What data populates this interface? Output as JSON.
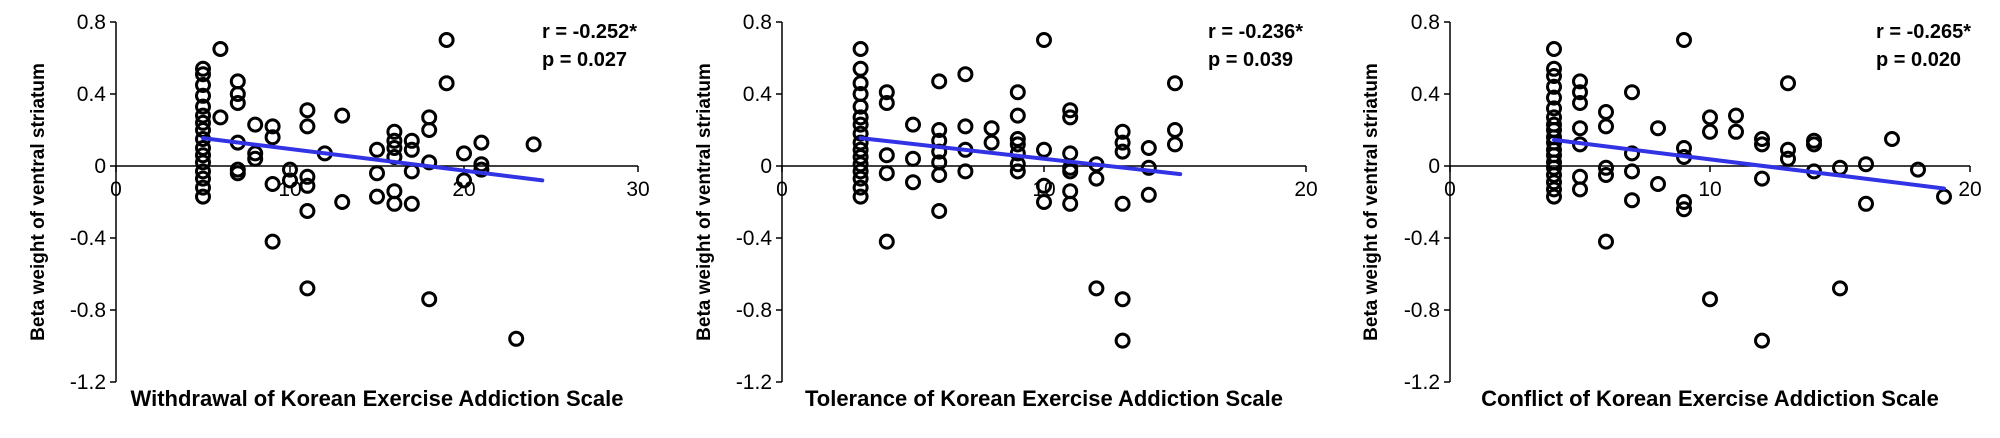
{
  "colors": {
    "fit_line": "#3333e6",
    "marker_stroke": "#000000",
    "axis": "#000000"
  },
  "chart_data": [
    {
      "type": "scatter",
      "xlabel": "Withdrawal of Korean Exercise Addiction Scale",
      "ylabel": "Beta weight of ventral striatum",
      "xlim": [
        0,
        30
      ],
      "ylim": [
        -1.2,
        0.8
      ],
      "xticks": [
        "0",
        "10",
        "20",
        "30"
      ],
      "yticks": [
        "0.8",
        "0.4",
        "0",
        "-0.4",
        "-0.8",
        "-1.2"
      ],
      "stat_r": "r = -0.252*",
      "stat_p": "p = 0.027",
      "fit_line": {
        "x": [
          5,
          24.5
        ],
        "y": [
          0.155,
          -0.08
        ]
      },
      "points": [
        [
          5,
          0.54
        ],
        [
          5,
          0.51
        ],
        [
          5,
          0.45
        ],
        [
          5,
          0.39
        ],
        [
          5,
          0.33
        ],
        [
          5,
          0.28
        ],
        [
          5,
          0.24
        ],
        [
          5,
          0.2
        ],
        [
          5,
          0.15
        ],
        [
          5,
          0.1
        ],
        [
          5,
          0.06
        ],
        [
          5,
          0.02
        ],
        [
          5,
          -0.03
        ],
        [
          5,
          -0.07
        ],
        [
          5,
          -0.12
        ],
        [
          5,
          -0.17
        ],
        [
          6,
          0.65
        ],
        [
          6,
          0.27
        ],
        [
          7,
          0.47
        ],
        [
          7,
          0.4
        ],
        [
          7,
          0.35
        ],
        [
          7,
          0.13
        ],
        [
          7,
          -0.02
        ],
        [
          7,
          -0.04
        ],
        [
          8,
          0.23
        ],
        [
          8,
          0.07
        ],
        [
          8,
          0.04
        ],
        [
          9,
          0.22
        ],
        [
          9,
          0.16
        ],
        [
          9,
          -0.1
        ],
        [
          9,
          -0.42
        ],
        [
          10,
          -0.02
        ],
        [
          10,
          -0.08
        ],
        [
          11,
          0.31
        ],
        [
          11,
          0.22
        ],
        [
          11,
          -0.06
        ],
        [
          11,
          -0.11
        ],
        [
          11,
          -0.25
        ],
        [
          11,
          -0.68
        ],
        [
          12,
          0.07
        ],
        [
          13,
          0.28
        ],
        [
          13,
          -0.2
        ],
        [
          15,
          0.09
        ],
        [
          15,
          -0.04
        ],
        [
          15,
          -0.17
        ],
        [
          16,
          0.19
        ],
        [
          16,
          0.14
        ],
        [
          16,
          0.1
        ],
        [
          16,
          0.05
        ],
        [
          16,
          -0.14
        ],
        [
          16,
          -0.21
        ],
        [
          17,
          0.14
        ],
        [
          17,
          0.09
        ],
        [
          17,
          -0.03
        ],
        [
          17,
          -0.21
        ],
        [
          18,
          0.27
        ],
        [
          18,
          0.2
        ],
        [
          18,
          0.02
        ],
        [
          18,
          -0.74
        ],
        [
          19,
          0.7
        ],
        [
          19,
          0.46
        ],
        [
          20,
          0.07
        ],
        [
          20,
          -0.08
        ],
        [
          21,
          0.13
        ],
        [
          21,
          0.01
        ],
        [
          21,
          -0.02
        ],
        [
          23,
          -0.96
        ],
        [
          24,
          0.12
        ]
      ]
    },
    {
      "type": "scatter",
      "xlabel": "Tolerance of Korean Exercise Addiction Scale",
      "ylabel": "Beta weight of ventral striatum",
      "xlim": [
        0,
        20
      ],
      "ylim": [
        -1.2,
        0.8
      ],
      "xticks": [
        "0",
        "10",
        "20"
      ],
      "yticks": [
        "0.8",
        "0.4",
        "0",
        "-0.4",
        "-0.8",
        "-1.2"
      ],
      "stat_r": "r = -0.236*",
      "stat_p": "p = 0.039",
      "fit_line": {
        "x": [
          3,
          15.2
        ],
        "y": [
          0.155,
          -0.045
        ]
      },
      "points": [
        [
          3,
          0.65
        ],
        [
          3,
          0.54
        ],
        [
          3,
          0.46
        ],
        [
          3,
          0.4
        ],
        [
          3,
          0.33
        ],
        [
          3,
          0.27
        ],
        [
          3,
          0.23
        ],
        [
          3,
          0.18
        ],
        [
          3,
          0.13
        ],
        [
          3,
          0.09
        ],
        [
          3,
          0.05
        ],
        [
          3,
          0.01
        ],
        [
          3,
          -0.03
        ],
        [
          3,
          -0.07
        ],
        [
          3,
          -0.12
        ],
        [
          3,
          -0.17
        ],
        [
          4,
          0.41
        ],
        [
          4,
          0.35
        ],
        [
          4,
          0.06
        ],
        [
          4,
          -0.04
        ],
        [
          4,
          -0.42
        ],
        [
          5,
          0.23
        ],
        [
          5,
          0.04
        ],
        [
          5,
          -0.09
        ],
        [
          6,
          0.47
        ],
        [
          6,
          0.2
        ],
        [
          6,
          0.14
        ],
        [
          6,
          0.08
        ],
        [
          6,
          0.02
        ],
        [
          6,
          -0.05
        ],
        [
          6,
          -0.25
        ],
        [
          7,
          0.51
        ],
        [
          7,
          0.22
        ],
        [
          7,
          0.09
        ],
        [
          7,
          -0.03
        ],
        [
          8,
          0.21
        ],
        [
          8,
          0.13
        ],
        [
          9,
          0.41
        ],
        [
          9,
          0.28
        ],
        [
          9,
          0.15
        ],
        [
          9,
          0.12
        ],
        [
          9,
          0.07
        ],
        [
          9,
          0.01
        ],
        [
          9,
          -0.03
        ],
        [
          10,
          0.7
        ],
        [
          10,
          0.09
        ],
        [
          10,
          -0.11
        ],
        [
          10,
          -0.2
        ],
        [
          11,
          0.31
        ],
        [
          11,
          0.27
        ],
        [
          11,
          0.07
        ],
        [
          11,
          -0.01
        ],
        [
          11,
          -0.03
        ],
        [
          11,
          -0.14
        ],
        [
          11,
          -0.21
        ],
        [
          12,
          0.01
        ],
        [
          12,
          -0.07
        ],
        [
          12,
          -0.68
        ],
        [
          13,
          0.19
        ],
        [
          13,
          0.13
        ],
        [
          13,
          0.08
        ],
        [
          13,
          -0.21
        ],
        [
          13,
          -0.74
        ],
        [
          13,
          -0.97
        ],
        [
          14,
          0.1
        ],
        [
          14,
          -0.01
        ],
        [
          14,
          -0.16
        ],
        [
          15,
          0.46
        ],
        [
          15,
          0.2
        ],
        [
          15,
          0.12
        ]
      ]
    },
    {
      "type": "scatter",
      "xlabel": "Conflict of Korean Exercise Addiction Scale",
      "ylabel": "Beta weight of ventral striatum",
      "xlim": [
        0,
        20
      ],
      "ylim": [
        -1.2,
        0.8
      ],
      "xticks": [
        "0",
        "10",
        "20"
      ],
      "yticks": [
        "0.8",
        "0.4",
        "0",
        "-0.4",
        "-0.8",
        "-1.2"
      ],
      "stat_r": "r = -0.265*",
      "stat_p": "p = 0.020",
      "fit_line": {
        "x": [
          4,
          19
        ],
        "y": [
          0.145,
          -0.125
        ]
      },
      "points": [
        [
          4,
          0.65
        ],
        [
          4,
          0.54
        ],
        [
          4,
          0.5
        ],
        [
          4,
          0.44
        ],
        [
          4,
          0.38
        ],
        [
          4,
          0.32
        ],
        [
          4,
          0.27
        ],
        [
          4,
          0.23
        ],
        [
          4,
          0.2
        ],
        [
          4,
          0.16
        ],
        [
          4,
          0.13
        ],
        [
          4,
          0.09
        ],
        [
          4,
          0.06
        ],
        [
          4,
          0.02
        ],
        [
          4,
          -0.01
        ],
        [
          4,
          -0.05
        ],
        [
          4,
          -0.09
        ],
        [
          4,
          -0.13
        ],
        [
          4,
          -0.17
        ],
        [
          5,
          0.47
        ],
        [
          5,
          0.41
        ],
        [
          5,
          0.35
        ],
        [
          5,
          0.21
        ],
        [
          5,
          0.12
        ],
        [
          5,
          -0.06
        ],
        [
          5,
          -0.13
        ],
        [
          6,
          0.3
        ],
        [
          6,
          0.22
        ],
        [
          6,
          -0.01
        ],
        [
          6,
          -0.05
        ],
        [
          6,
          -0.42
        ],
        [
          7,
          0.41
        ],
        [
          7,
          0.07
        ],
        [
          7,
          -0.03
        ],
        [
          7,
          -0.19
        ],
        [
          8,
          0.21
        ],
        [
          8,
          -0.1
        ],
        [
          9,
          0.7
        ],
        [
          9,
          0.1
        ],
        [
          9,
          0.05
        ],
        [
          9,
          -0.2
        ],
        [
          9,
          -0.24
        ],
        [
          10,
          0.27
        ],
        [
          10,
          0.19
        ],
        [
          10,
          -0.74
        ],
        [
          11,
          0.28
        ],
        [
          11,
          0.19
        ],
        [
          12,
          0.15
        ],
        [
          12,
          0.12
        ],
        [
          12,
          -0.07
        ],
        [
          12,
          -0.97
        ],
        [
          13,
          0.46
        ],
        [
          13,
          0.09
        ],
        [
          13,
          0.04
        ],
        [
          14,
          0.14
        ],
        [
          14,
          0.12
        ],
        [
          14,
          -0.03
        ],
        [
          15,
          -0.01
        ],
        [
          15,
          -0.68
        ],
        [
          16,
          0.01
        ],
        [
          16,
          -0.21
        ],
        [
          17,
          0.15
        ],
        [
          18,
          -0.02
        ],
        [
          19,
          -0.17
        ]
      ]
    }
  ]
}
